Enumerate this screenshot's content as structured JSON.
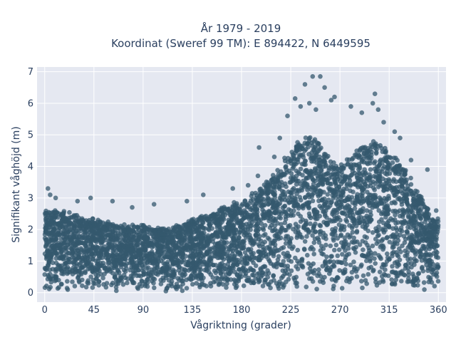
{
  "chart_data": {
    "type": "scatter",
    "title_lines": [
      "År 1979 - 2019",
      "Koordinat (Sweref 99 TM): E 894422, N 6449595"
    ],
    "xlabel": "Vågriktning (grader)",
    "ylabel": "Signifikant våghöjd (m)",
    "xlim": [
      -7,
      367
    ],
    "ylim": [
      -0.3,
      7.15
    ],
    "xticks": [
      0,
      45,
      90,
      135,
      180,
      225,
      270,
      315,
      360
    ],
    "yticks": [
      0,
      1,
      2,
      3,
      4,
      5,
      6,
      7
    ],
    "grid": true,
    "marker_color": "#34586e",
    "plot_bg": "#e5e8f1",
    "envelope_x": [
      0,
      15,
      30,
      45,
      60,
      75,
      90,
      105,
      120,
      135,
      150,
      165,
      180,
      195,
      210,
      225,
      240,
      250,
      260,
      270,
      285,
      300,
      315,
      330,
      345,
      355,
      360
    ],
    "envelope_y": [
      2.6,
      2.6,
      2.4,
      2.3,
      2.2,
      2.1,
      2.1,
      2.0,
      2.1,
      2.3,
      2.5,
      2.7,
      2.9,
      3.2,
      3.8,
      4.5,
      5.0,
      4.8,
      4.3,
      4.0,
      4.5,
      4.8,
      4.5,
      3.9,
      3.0,
      2.4,
      2.3
    ],
    "outliers": [
      {
        "x": 3,
        "y": 3.3
      },
      {
        "x": 5,
        "y": 3.1
      },
      {
        "x": 10,
        "y": 3.0
      },
      {
        "x": 30,
        "y": 2.9
      },
      {
        "x": 42,
        "y": 3.0
      },
      {
        "x": 62,
        "y": 2.9
      },
      {
        "x": 80,
        "y": 2.7
      },
      {
        "x": 100,
        "y": 2.8
      },
      {
        "x": 130,
        "y": 2.9
      },
      {
        "x": 145,
        "y": 3.1
      },
      {
        "x": 172,
        "y": 3.3
      },
      {
        "x": 186,
        "y": 3.4
      },
      {
        "x": 195,
        "y": 3.7
      },
      {
        "x": 196,
        "y": 4.6
      },
      {
        "x": 210,
        "y": 4.3
      },
      {
        "x": 215,
        "y": 4.9
      },
      {
        "x": 222,
        "y": 5.6
      },
      {
        "x": 229,
        "y": 6.15
      },
      {
        "x": 234,
        "y": 5.9
      },
      {
        "x": 238,
        "y": 6.6
      },
      {
        "x": 242,
        "y": 6.0
      },
      {
        "x": 245,
        "y": 6.85
      },
      {
        "x": 252,
        "y": 6.85
      },
      {
        "x": 256,
        "y": 6.5
      },
      {
        "x": 262,
        "y": 6.1
      },
      {
        "x": 265,
        "y": 6.2
      },
      {
        "x": 248,
        "y": 5.8
      },
      {
        "x": 280,
        "y": 5.9
      },
      {
        "x": 290,
        "y": 5.7
      },
      {
        "x": 300,
        "y": 6.0
      },
      {
        "x": 302,
        "y": 6.3
      },
      {
        "x": 305,
        "y": 5.8
      },
      {
        "x": 310,
        "y": 5.4
      },
      {
        "x": 320,
        "y": 5.1
      },
      {
        "x": 325,
        "y": 4.9
      },
      {
        "x": 335,
        "y": 4.2
      },
      {
        "x": 350,
        "y": 3.9
      },
      {
        "x": 358,
        "y": 2.6
      }
    ]
  }
}
